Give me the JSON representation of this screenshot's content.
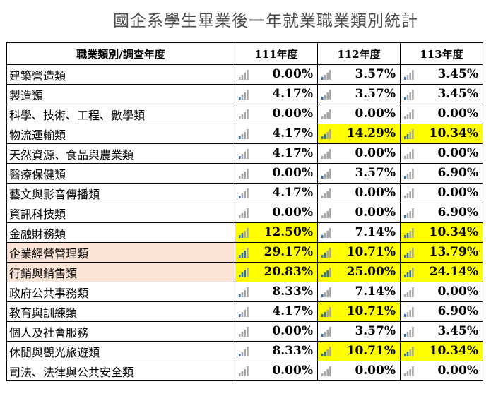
{
  "title": "國企系學生畢業後一年就業職業類別統計",
  "header": [
    "職業類別/調查年度",
    "111年度",
    "112年度",
    "113年度"
  ],
  "rows": [
    {
      "cat": "建築營造類",
      "vals": [
        "0.00%",
        "3.57%",
        "3.45%"
      ],
      "hl": [
        false,
        false,
        false
      ],
      "pink": false,
      "levels": [
        0,
        1,
        1
      ]
    },
    {
      "cat": "製造類",
      "vals": [
        "4.17%",
        "3.57%",
        "3.45%"
      ],
      "hl": [
        false,
        false,
        false
      ],
      "pink": false,
      "levels": [
        1,
        1,
        1
      ]
    },
    {
      "cat": "科學、技術、工程、數學類",
      "vals": [
        "0.00%",
        "0.00%",
        "0.00%"
      ],
      "hl": [
        false,
        false,
        false
      ],
      "pink": false,
      "levels": [
        0,
        0,
        0
      ]
    },
    {
      "cat": "物流運輸類",
      "vals": [
        "4.17%",
        "14.29%",
        "10.34%"
      ],
      "hl": [
        false,
        true,
        true
      ],
      "pink": false,
      "levels": [
        1,
        2,
        2
      ]
    },
    {
      "cat": "天然資源、食品與農業類",
      "vals": [
        "4.17%",
        "0.00%",
        "0.00%"
      ],
      "hl": [
        false,
        false,
        false
      ],
      "pink": false,
      "levels": [
        1,
        0,
        0
      ]
    },
    {
      "cat": "醫療保健類",
      "vals": [
        "0.00%",
        "3.57%",
        "6.90%"
      ],
      "hl": [
        false,
        false,
        false
      ],
      "pink": false,
      "levels": [
        0,
        1,
        1
      ]
    },
    {
      "cat": "藝文與影音傳播類",
      "vals": [
        "4.17%",
        "0.00%",
        "0.00%"
      ],
      "hl": [
        false,
        false,
        false
      ],
      "pink": false,
      "levels": [
        1,
        0,
        0
      ]
    },
    {
      "cat": "資訊科技類",
      "vals": [
        "0.00%",
        "0.00%",
        "6.90%"
      ],
      "hl": [
        false,
        false,
        false
      ],
      "pink": false,
      "levels": [
        0,
        0,
        1
      ]
    },
    {
      "cat": "金融財務類",
      "vals": [
        "12.50%",
        "7.14%",
        "10.34%"
      ],
      "hl": [
        true,
        false,
        true
      ],
      "pink": false,
      "levels": [
        2,
        1,
        2
      ]
    },
    {
      "cat": "企業經營管理類",
      "vals": [
        "29.17%",
        "10.71%",
        "13.79%"
      ],
      "hl": [
        true,
        true,
        true
      ],
      "pink": true,
      "levels": [
        3,
        2,
        2
      ]
    },
    {
      "cat": "行銷與銷售類",
      "vals": [
        "20.83%",
        "25.00%",
        "24.14%"
      ],
      "hl": [
        true,
        true,
        true
      ],
      "pink": true,
      "levels": [
        3,
        3,
        3
      ]
    },
    {
      "cat": "政府公共事務類",
      "vals": [
        "8.33%",
        "7.14%",
        "0.00%"
      ],
      "hl": [
        false,
        false,
        false
      ],
      "pink": false,
      "levels": [
        1,
        1,
        0
      ]
    },
    {
      "cat": "教育與訓練類",
      "vals": [
        "4.17%",
        "10.71%",
        "6.90%"
      ],
      "hl": [
        false,
        true,
        false
      ],
      "pink": false,
      "levels": [
        1,
        2,
        1
      ]
    },
    {
      "cat": "個人及社會服務",
      "vals": [
        "0.00%",
        "3.57%",
        "3.45%"
      ],
      "hl": [
        false,
        false,
        false
      ],
      "pink": false,
      "levels": [
        0,
        1,
        1
      ]
    },
    {
      "cat": "休閒與觀光旅遊類",
      "vals": [
        "8.33%",
        "10.71%",
        "10.34%"
      ],
      "hl": [
        false,
        true,
        true
      ],
      "pink": false,
      "levels": [
        1,
        2,
        2
      ]
    },
    {
      "cat": "司法、法律與公共安全類",
      "vals": [
        "0.00%",
        "0.00%",
        "0.00%"
      ],
      "hl": [
        false,
        false,
        false
      ],
      "pink": false,
      "levels": [
        0,
        0,
        0
      ]
    }
  ],
  "colors": {
    "highlight": "#ffff00",
    "pink": "#fbe4d6",
    "bar_active": "#2e6fb6",
    "bar_inactive": "#a6a6a6"
  },
  "icon": "signal-bars-icon"
}
